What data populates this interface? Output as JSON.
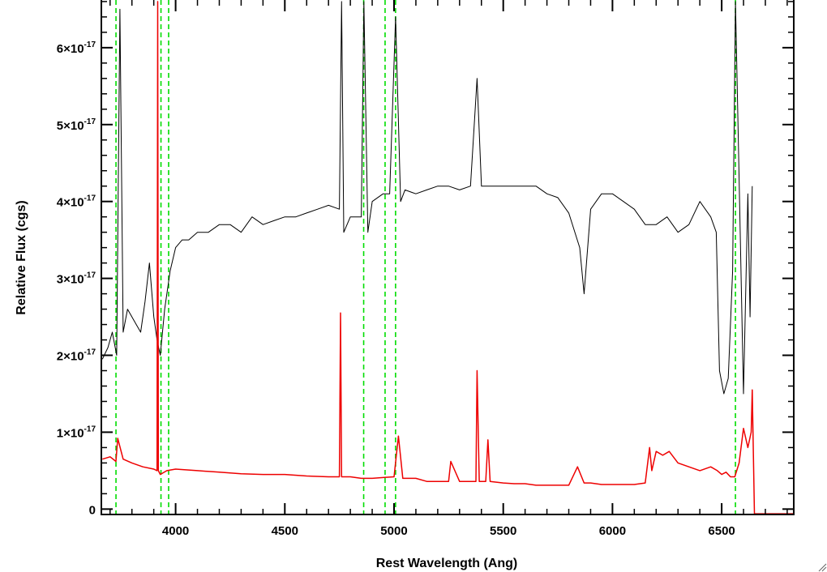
{
  "chart_data": {
    "type": "line",
    "xlabel": "Rest Wavelength (Ang)",
    "ylabel": "Relative Flux (cgs)",
    "xlim": [
      3660,
      6830
    ],
    "ylim": [
      -7e-19,
      6.62e-17
    ],
    "grid": false,
    "x_ticks": [
      {
        "value": 4000,
        "label": "4000"
      },
      {
        "value": 4500,
        "label": "4500"
      },
      {
        "value": 5000,
        "label": "5000"
      },
      {
        "value": 5500,
        "label": "5500"
      },
      {
        "value": 6000,
        "label": "6000"
      },
      {
        "value": 6500,
        "label": "6500"
      }
    ],
    "y_ticks": [
      {
        "value": 0,
        "mantissa": "0",
        "exponent": ""
      },
      {
        "value": 1e-17,
        "mantissa": "1×10",
        "exponent": "-17"
      },
      {
        "value": 2e-17,
        "mantissa": "2×10",
        "exponent": "-17"
      },
      {
        "value": 3e-17,
        "mantissa": "3×10",
        "exponent": "-17"
      },
      {
        "value": 4e-17,
        "mantissa": "4×10",
        "exponent": "-17"
      },
      {
        "value": 5e-17,
        "mantissa": "5×10",
        "exponent": "-17"
      },
      {
        "value": 6e-17,
        "mantissa": "6×10",
        "exponent": "-17"
      }
    ],
    "vertical_lines": [
      {
        "x": 3727,
        "color": "#00dd00",
        "style": "dashed"
      },
      {
        "x": 3933,
        "color": "#00dd00",
        "style": "dashed"
      },
      {
        "x": 3968,
        "color": "#00dd00",
        "style": "dashed"
      },
      {
        "x": 4861,
        "color": "#00dd00",
        "style": "dashed"
      },
      {
        "x": 4959,
        "color": "#00dd00",
        "style": "dashed"
      },
      {
        "x": 5007,
        "color": "#00dd00",
        "style": "dashed"
      },
      {
        "x": 6563,
        "color": "#00dd00",
        "style": "dashed"
      }
    ],
    "series": [
      {
        "color": "#000000",
        "x": [
          3665,
          3690,
          3710,
          3730,
          3745,
          3760,
          3780,
          3800,
          3820,
          3840,
          3860,
          3880,
          3900,
          3915,
          3930,
          3950,
          3975,
          4000,
          4030,
          4060,
          4100,
          4150,
          4200,
          4250,
          4300,
          4350,
          4400,
          4450,
          4500,
          4550,
          4600,
          4650,
          4700,
          4750,
          4760,
          4770,
          4800,
          4850,
          4862,
          4880,
          4900,
          4950,
          4980,
          5007,
          5030,
          5050,
          5100,
          5150,
          5200,
          5250,
          5300,
          5350,
          5380,
          5400,
          5450,
          5500,
          5550,
          5600,
          5650,
          5700,
          5750,
          5800,
          5850,
          5870,
          5900,
          5950,
          6000,
          6050,
          6100,
          6150,
          6200,
          6250,
          6300,
          6350,
          6400,
          6450,
          6475,
          6490,
          6510,
          6530,
          6550,
          6563,
          6580,
          6600,
          6620,
          6630,
          6640
        ],
        "y": [
          1.95e-17,
          2.1e-17,
          2.3e-17,
          2e-17,
          6.5e-17,
          2.3e-17,
          2.6e-17,
          2.5e-17,
          2.4e-17,
          2.3e-17,
          2.7e-17,
          3.2e-17,
          2.5e-17,
          2.2e-17,
          2e-17,
          2.6e-17,
          3.1e-17,
          3.4e-17,
          3.5e-17,
          3.5e-17,
          3.6e-17,
          3.6e-17,
          3.7e-17,
          3.7e-17,
          3.6e-17,
          3.8e-17,
          3.7e-17,
          3.75e-17,
          3.8e-17,
          3.8e-17,
          3.85e-17,
          3.9e-17,
          3.95e-17,
          3.9e-17,
          6.6e-17,
          3.6e-17,
          3.8e-17,
          3.8e-17,
          6.6e-17,
          3.6e-17,
          4e-17,
          4.1e-17,
          4.1e-17,
          6.4e-17,
          4e-17,
          4.15e-17,
          4.1e-17,
          4.15e-17,
          4.2e-17,
          4.2e-17,
          4.15e-17,
          4.2e-17,
          5.6e-17,
          4.2e-17,
          4.2e-17,
          4.2e-17,
          4.2e-17,
          4.2e-17,
          4.2e-17,
          4.1e-17,
          4.05e-17,
          3.85e-17,
          3.4e-17,
          2.8e-17,
          3.9e-17,
          4.1e-17,
          4.1e-17,
          4e-17,
          3.9e-17,
          3.7e-17,
          3.7e-17,
          3.8e-17,
          3.6e-17,
          3.7e-17,
          4e-17,
          3.8e-17,
          3.6e-17,
          1.8e-17,
          1.5e-17,
          1.7e-17,
          3.1e-17,
          6.6e-17,
          4.3e-17,
          1.5e-17,
          4.1e-17,
          2.5e-17,
          4.2e-17
        ]
      },
      {
        "color": "#ee0000",
        "x": [
          3665,
          3700,
          3727,
          3735,
          3760,
          3800,
          3850,
          3900,
          3915,
          3918,
          3921,
          3930,
          3960,
          4000,
          4100,
          4200,
          4300,
          4400,
          4500,
          4600,
          4700,
          4750,
          4755,
          4760,
          4800,
          4850,
          4900,
          4950,
          5000,
          5020,
          5040,
          5100,
          5150,
          5200,
          5250,
          5260,
          5300,
          5350,
          5375,
          5380,
          5390,
          5420,
          5430,
          5440,
          5500,
          5550,
          5600,
          5650,
          5700,
          5750,
          5800,
          5840,
          5870,
          5900,
          5950,
          6000,
          6050,
          6100,
          6150,
          6170,
          6180,
          6200,
          6230,
          6260,
          6300,
          6350,
          6400,
          6450,
          6480,
          6500,
          6520,
          6540,
          6560,
          6580,
          6600,
          6620,
          6635,
          6640,
          6650,
          6700,
          6750,
          6800,
          6830
        ],
        "y": [
          6.5e-18,
          6.8e-18,
          6.2e-18,
          9.2e-18,
          6.5e-18,
          6e-18,
          5.5e-18,
          5.2e-18,
          5e-18,
          6.6e-17,
          5e-18,
          4.5e-18,
          5e-18,
          5.2e-18,
          5e-18,
          4.8e-18,
          4.6e-18,
          4.5e-18,
          4.5e-18,
          4.3e-18,
          4.2e-18,
          4.2e-18,
          2.55e-17,
          4.2e-18,
          4.2e-18,
          4e-18,
          4e-18,
          4.1e-18,
          4.2e-18,
          9.5e-18,
          4e-18,
          4e-18,
          3.6e-18,
          3.6e-18,
          3.6e-18,
          6.2e-18,
          3.6e-18,
          3.6e-18,
          3.6e-18,
          1.8e-17,
          3.6e-18,
          3.6e-18,
          9e-18,
          3.6e-18,
          3.4e-18,
          3.3e-18,
          3.3e-18,
          3.1e-18,
          3.1e-18,
          3.1e-18,
          3.1e-18,
          5.5e-18,
          3.4e-18,
          3.4e-18,
          3.2e-18,
          3.2e-18,
          3.2e-18,
          3.2e-18,
          3.4e-18,
          8e-18,
          5e-18,
          7.5e-18,
          7e-18,
          7.5e-18,
          6e-18,
          5.5e-18,
          5e-18,
          5.5e-18,
          5e-18,
          4.5e-18,
          4.8e-18,
          4.2e-18,
          4.2e-18,
          6e-18,
          1.05e-17,
          8e-18,
          1e-17,
          1.55e-17,
          -6e-19,
          -6e-19,
          -6e-19,
          -6e-19,
          -6e-19
        ]
      }
    ]
  }
}
